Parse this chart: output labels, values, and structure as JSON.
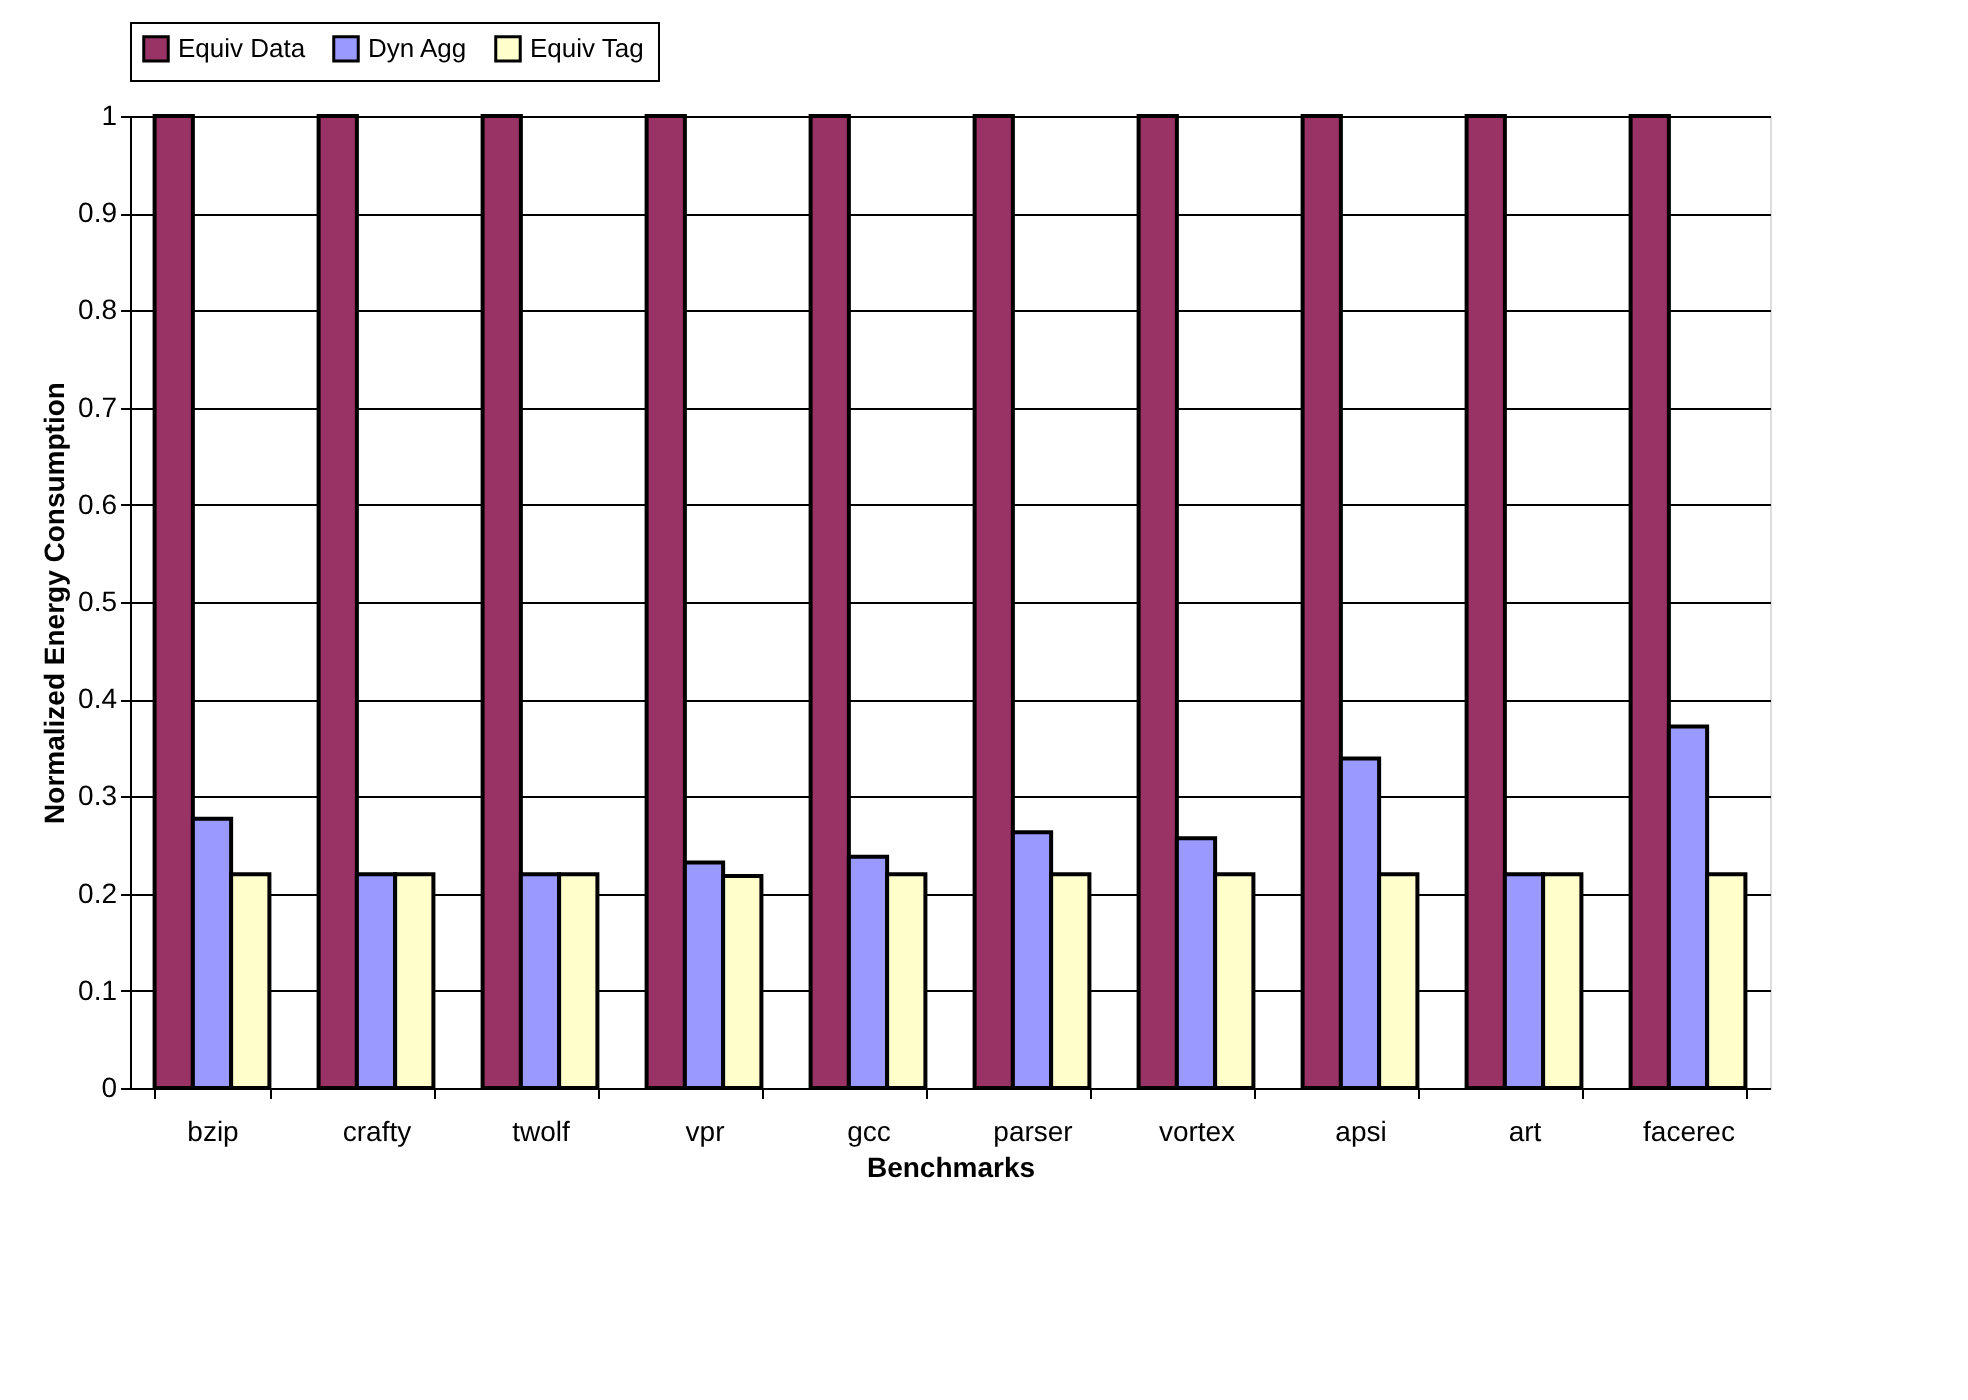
{
  "chart_data": {
    "type": "bar",
    "xlabel": "Benchmarks",
    "ylabel": "Normalized Energy Consumption",
    "categories": [
      "bzip",
      "crafty",
      "twolf",
      "vpr",
      "gcc",
      "parser",
      "vortex",
      "apsi",
      "art",
      "facerec"
    ],
    "series": [
      {
        "name": "Equiv Data",
        "color": "#993366",
        "values": [
          1,
          1,
          1,
          1,
          1,
          1,
          1,
          1,
          1,
          1
        ]
      },
      {
        "name": "Dyn Agg",
        "color": "#9999ff",
        "values": [
          0.277,
          0.22,
          0.22,
          0.232,
          0.238,
          0.263,
          0.257,
          0.339,
          0.22,
          0.372
        ]
      },
      {
        "name": "Equiv Tag",
        "color": "#ffffcc",
        "values": [
          0.22,
          0.22,
          0.22,
          0.218,
          0.22,
          0.22,
          0.22,
          0.22,
          0.22,
          0.22
        ]
      }
    ],
    "ylim": [
      0,
      1
    ],
    "yticks": [
      0,
      0.1,
      0.2,
      0.3,
      0.4,
      0.5,
      0.6,
      0.7,
      0.8,
      0.9,
      1
    ],
    "grid": "y",
    "legend": "top"
  }
}
